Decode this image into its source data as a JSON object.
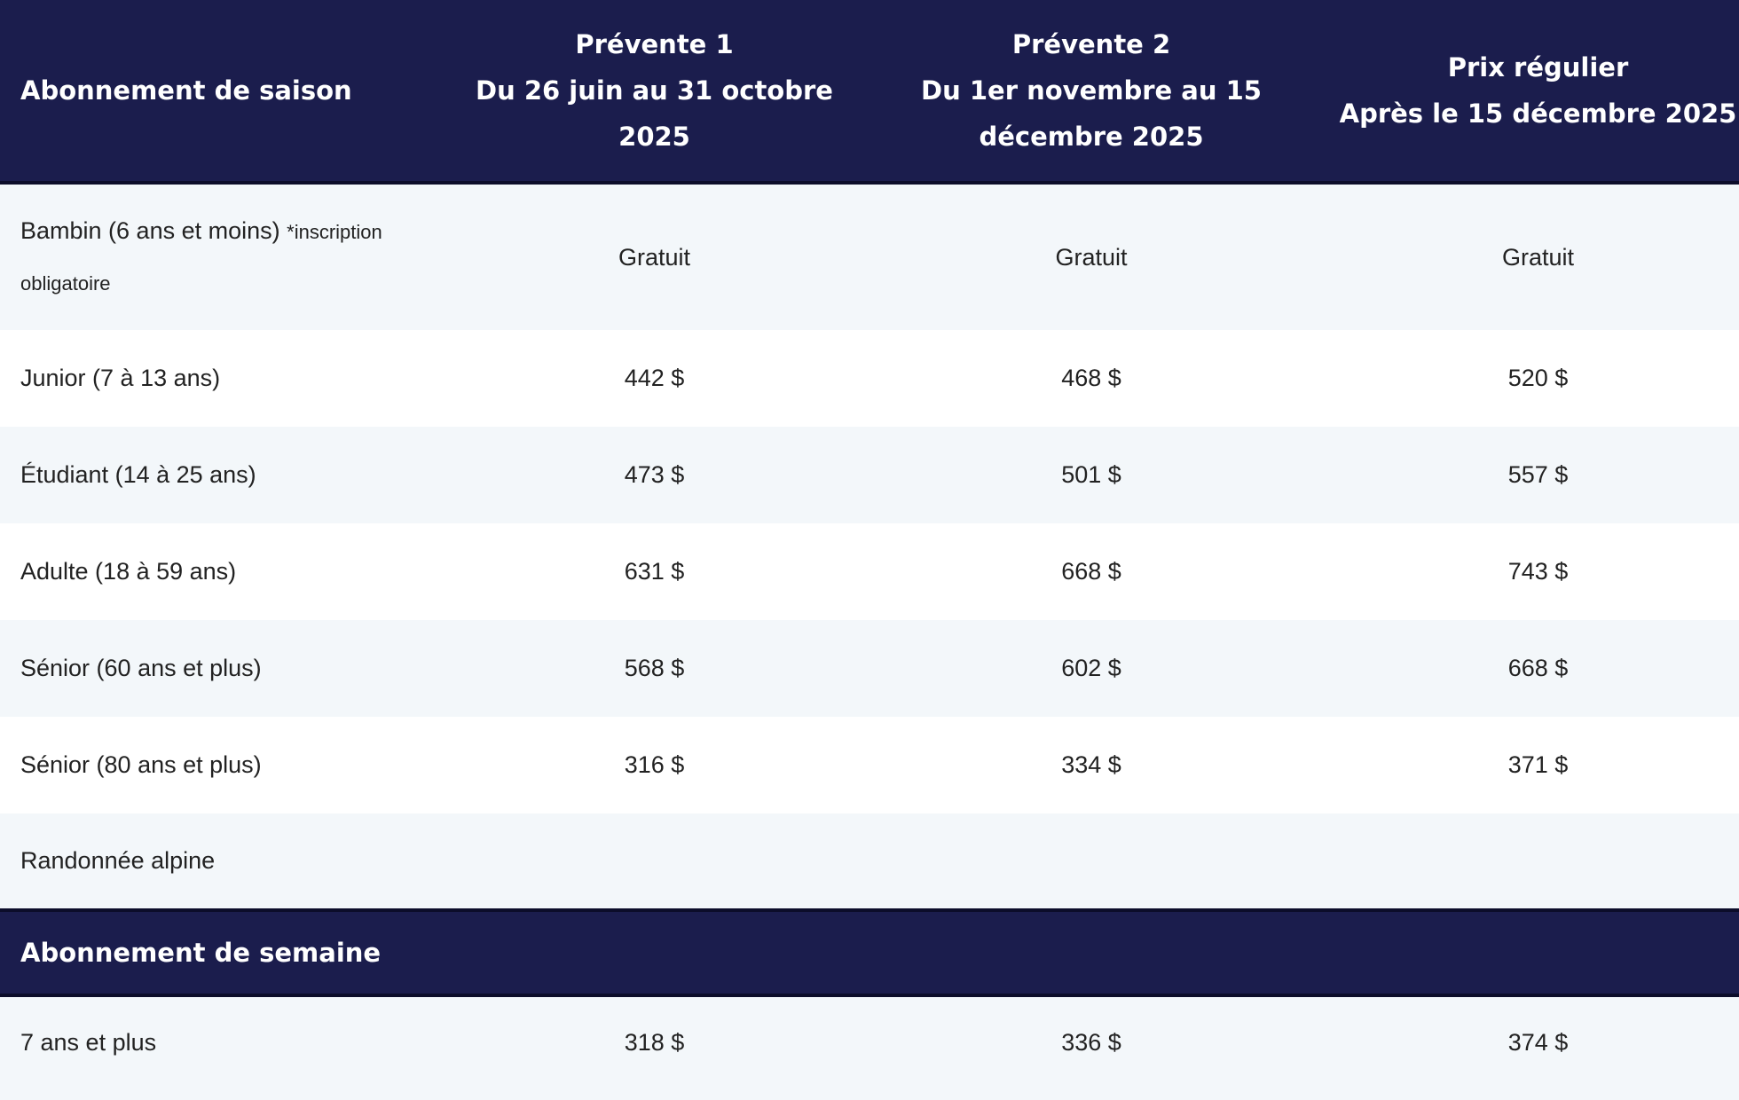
{
  "header": {
    "col0": "Abonnement de saison",
    "col1": [
      "Prévente 1",
      "Du 26 juin au 31 octobre",
      "2025"
    ],
    "col2": [
      "Prévente 2",
      "Du 1er novembre au 15",
      "décembre 2025"
    ],
    "col3": [
      "Prix régulier",
      "Après le 15 décembre 2025"
    ]
  },
  "season_rows": [
    {
      "label": "Bambin (6 ans et moins)",
      "note": "*inscription obligatoire",
      "p1": "Gratuit",
      "p2": "Gratuit",
      "p3": "Gratuit"
    },
    {
      "label": "Junior (7 à 13 ans)",
      "p1": "442 $",
      "p2": "468 $",
      "p3": "520 $"
    },
    {
      "label": "Étudiant (14 à 25 ans)",
      "p1": "473 $",
      "p2": "501 $",
      "p3": "557 $"
    },
    {
      "label": "Adulte (18 à 59 ans)",
      "p1": "631 $",
      "p2": "668 $",
      "p3": "743 $"
    },
    {
      "label": "Sénior (60 ans et plus)",
      "p1": "568 $",
      "p2": "602 $",
      "p3": "668 $"
    },
    {
      "label": "Sénior (80 ans et plus)",
      "p1": "316 $",
      "p2": "334 $",
      "p3": "371 $"
    },
    {
      "label": "Randonnée alpine",
      "p1": "",
      "p2": "",
      "p3": ""
    }
  ],
  "week_section": {
    "title": "Abonnement de semaine",
    "rows": [
      {
        "label": "7 ans et plus",
        "p1": "318 $",
        "p2": "336 $",
        "p3": "374 $"
      }
    ]
  }
}
